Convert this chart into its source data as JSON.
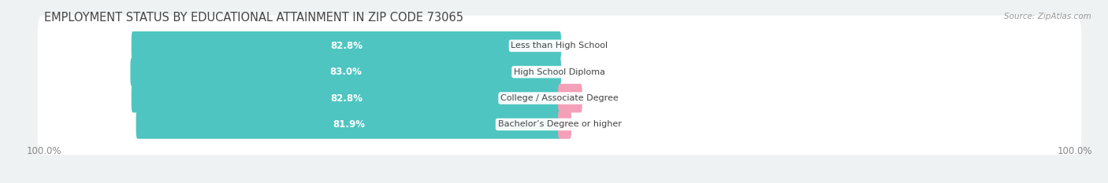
{
  "title": "EMPLOYMENT STATUS BY EDUCATIONAL ATTAINMENT IN ZIP CODE 73065",
  "source": "Source: ZipAtlas.com",
  "categories": [
    "Less than High School",
    "High School Diploma",
    "College / Associate Degree",
    "Bachelor’s Degree or higher"
  ],
  "labor_force": [
    82.8,
    83.0,
    82.8,
    81.9
  ],
  "unemployed": [
    0.0,
    0.0,
    4.1,
    2.0
  ],
  "labor_force_color": "#4ec5c1",
  "unemployed_color": "#f4a0b8",
  "bg_color": "#eef2f2",
  "row_bg_color": "#ffffff",
  "title_color": "#444444",
  "label_color": "#666666",
  "text_color_white": "#ffffff",
  "category_text_color": "#444444",
  "legend_labor_color": "#4ec5c1",
  "legend_unemployed_color": "#f4a0b8",
  "left_label": "100.0%",
  "right_label": "100.0%",
  "max_value": 100.0,
  "title_fontsize": 10.5,
  "bar_label_fontsize": 8.5,
  "category_fontsize": 8.0,
  "tick_fontsize": 8.5,
  "legend_fontsize": 8.5
}
